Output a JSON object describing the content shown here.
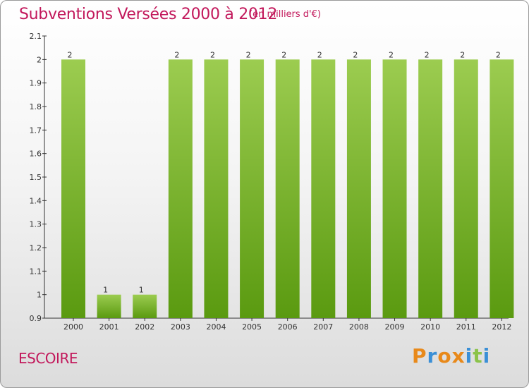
{
  "header": {
    "title": "Subventions Versées 2000 à 2012",
    "subtitle": "(en milliers d'€)"
  },
  "footer": {
    "commune": "ESCOIRE",
    "logo_text": "Proxiti"
  },
  "colors": {
    "title": "#c2185b",
    "bar_top": "#9ccc50",
    "bar_bottom": "#5a9a10",
    "logo_letters": [
      "#e8891a",
      "#3a8fd6",
      "#e8891a",
      "#e8891a",
      "#3a8fd6",
      "#8bc34a",
      "#3a8fd6"
    ]
  },
  "chart_data": {
    "type": "bar",
    "categories": [
      "2000",
      "2001",
      "2002",
      "2003",
      "2004",
      "2005",
      "2006",
      "2007",
      "2008",
      "2009",
      "2010",
      "2011",
      "2012"
    ],
    "values": [
      2,
      1,
      1,
      2,
      2,
      2,
      2,
      2,
      2,
      2,
      2,
      2,
      2
    ],
    "data_labels": [
      "2",
      "1",
      "1",
      "2",
      "2",
      "2",
      "2",
      "2",
      "2",
      "2",
      "2",
      "2",
      "2"
    ],
    "title": "Subventions Versées 2000 à 2012",
    "ylim": [
      0.9,
      2.1
    ],
    "yticks": [
      0.9,
      1,
      1.1,
      1.2,
      1.3,
      1.4,
      1.5,
      1.6,
      1.7,
      1.8,
      1.9,
      2,
      2.1
    ],
    "ytick_labels": [
      "0.9",
      "1",
      "1.1",
      "1.2",
      "1.3",
      "1.4",
      "1.5",
      "1.6",
      "1.7",
      "1.8",
      "1.9",
      "2",
      "2.1"
    ],
    "grid": false,
    "legend": "none"
  }
}
